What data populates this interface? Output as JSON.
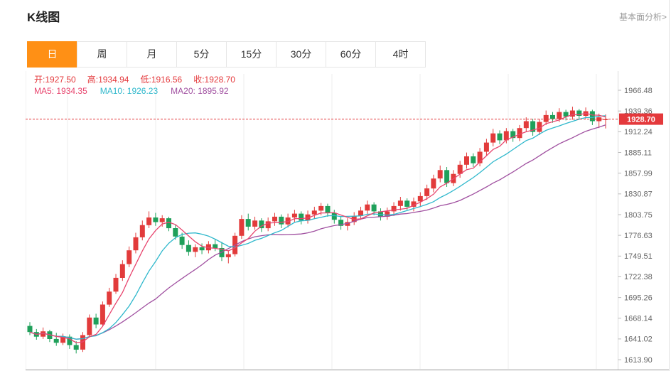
{
  "header": {
    "title": "K线图",
    "link": "基本面分析>"
  },
  "tabs": [
    {
      "label": "日",
      "active": true
    },
    {
      "label": "周",
      "active": false
    },
    {
      "label": "月",
      "active": false
    },
    {
      "label": "5分",
      "active": false
    },
    {
      "label": "15分",
      "active": false
    },
    {
      "label": "30分",
      "active": false
    },
    {
      "label": "60分",
      "active": false
    },
    {
      "label": "4时",
      "active": false
    }
  ],
  "quote": {
    "open_label": "开:",
    "open": "1927.50",
    "high_label": "高:",
    "high": "1934.94",
    "low_label": "低:",
    "low": "1916.56",
    "close_label": "收:",
    "close": "1928.70"
  },
  "ma": {
    "ma5_label": "MA5:",
    "ma5": "1934.35",
    "ma10_label": "MA10:",
    "ma10": "1926.23",
    "ma20_label": "MA20:",
    "ma20": "1895.92"
  },
  "colors": {
    "accent_orange": "#ff9015",
    "up_red": "#e23b3b",
    "down_green": "#1fa05a",
    "ma5": "#e8456e",
    "ma10": "#2fb8cc",
    "ma20": "#a050a0",
    "price_marker": "#e4393c"
  },
  "chart_data": {
    "type": "candlestick",
    "title": "K线图 (日)",
    "current_price": 1928.7,
    "current_price_label": "1928.70",
    "value_top": 1991.6,
    "value_bottom": 1600.0,
    "y_ticks": [
      "1966.48",
      "1939.36",
      "1912.24",
      "1885.11",
      "1857.99",
      "1830.87",
      "1803.75",
      "1776.63",
      "1749.51",
      "1722.38",
      "1695.26",
      "1668.14",
      "1641.02",
      "1613.90"
    ],
    "legend": [
      {
        "name": "MA5",
        "value": 1934.35
      },
      {
        "name": "MA10",
        "value": 1926.23
      },
      {
        "name": "MA20",
        "value": 1895.92
      }
    ],
    "candles": [
      [
        1658,
        1663,
        1646,
        1650
      ],
      [
        1650,
        1654,
        1640,
        1644
      ],
      [
        1644,
        1656,
        1641,
        1651
      ],
      [
        1651,
        1653,
        1637,
        1641
      ],
      [
        1641,
        1649,
        1632,
        1636
      ],
      [
        1636,
        1648,
        1633,
        1644
      ],
      [
        1644,
        1647,
        1628,
        1633
      ],
      [
        1633,
        1638,
        1622,
        1627
      ],
      [
        1627,
        1650,
        1624,
        1646
      ],
      [
        1646,
        1673,
        1643,
        1669
      ],
      [
        1669,
        1674,
        1655,
        1660
      ],
      [
        1660,
        1690,
        1658,
        1686
      ],
      [
        1686,
        1708,
        1683,
        1703
      ],
      [
        1703,
        1726,
        1700,
        1721
      ],
      [
        1721,
        1744,
        1717,
        1739
      ],
      [
        1739,
        1762,
        1735,
        1757
      ],
      [
        1757,
        1780,
        1753,
        1774
      ],
      [
        1774,
        1796,
        1770,
        1790
      ],
      [
        1790,
        1808,
        1786,
        1800
      ],
      [
        1800,
        1806,
        1789,
        1794
      ],
      [
        1794,
        1803,
        1788,
        1799
      ],
      [
        1799,
        1801,
        1782,
        1786
      ],
      [
        1786,
        1790,
        1771,
        1775
      ],
      [
        1775,
        1780,
        1759,
        1764
      ],
      [
        1764,
        1770,
        1750,
        1755
      ],
      [
        1755,
        1765,
        1748,
        1761
      ],
      [
        1761,
        1766,
        1752,
        1757
      ],
      [
        1757,
        1769,
        1753,
        1765
      ],
      [
        1765,
        1771,
        1756,
        1760
      ],
      [
        1760,
        1768,
        1743,
        1748
      ],
      [
        1748,
        1756,
        1740,
        1752
      ],
      [
        1752,
        1780,
        1749,
        1776
      ],
      [
        1776,
        1803,
        1772,
        1798
      ],
      [
        1798,
        1805,
        1783,
        1788
      ],
      [
        1788,
        1801,
        1784,
        1796
      ],
      [
        1796,
        1799,
        1781,
        1786
      ],
      [
        1786,
        1800,
        1782,
        1795
      ],
      [
        1795,
        1806,
        1789,
        1801
      ],
      [
        1801,
        1804,
        1786,
        1791
      ],
      [
        1791,
        1805,
        1787,
        1800
      ],
      [
        1800,
        1810,
        1794,
        1805
      ],
      [
        1805,
        1808,
        1791,
        1796
      ],
      [
        1796,
        1809,
        1792,
        1804
      ],
      [
        1804,
        1814,
        1798,
        1809
      ],
      [
        1809,
        1819,
        1803,
        1815
      ],
      [
        1815,
        1818,
        1801,
        1806
      ],
      [
        1806,
        1810,
        1792,
        1797
      ],
      [
        1797,
        1801,
        1784,
        1789
      ],
      [
        1789,
        1799,
        1783,
        1794
      ],
      [
        1794,
        1807,
        1790,
        1802
      ],
      [
        1802,
        1814,
        1797,
        1809
      ],
      [
        1809,
        1822,
        1804,
        1817
      ],
      [
        1817,
        1820,
        1803,
        1808
      ],
      [
        1808,
        1812,
        1796,
        1801
      ],
      [
        1801,
        1813,
        1797,
        1808
      ],
      [
        1808,
        1820,
        1802,
        1815
      ],
      [
        1815,
        1827,
        1809,
        1822
      ],
      [
        1822,
        1825,
        1810,
        1814
      ],
      [
        1814,
        1826,
        1808,
        1821
      ],
      [
        1821,
        1833,
        1815,
        1828
      ],
      [
        1828,
        1843,
        1823,
        1838
      ],
      [
        1838,
        1856,
        1833,
        1851
      ],
      [
        1851,
        1868,
        1846,
        1862
      ],
      [
        1862,
        1866,
        1840,
        1845
      ],
      [
        1845,
        1862,
        1841,
        1857
      ],
      [
        1857,
        1874,
        1852,
        1869
      ],
      [
        1869,
        1885,
        1864,
        1880
      ],
      [
        1880,
        1884,
        1866,
        1871
      ],
      [
        1871,
        1891,
        1867,
        1886
      ],
      [
        1886,
        1903,
        1881,
        1898
      ],
      [
        1898,
        1916,
        1893,
        1910
      ],
      [
        1910,
        1914,
        1896,
        1901
      ],
      [
        1901,
        1917,
        1897,
        1913
      ],
      [
        1913,
        1916,
        1899,
        1904
      ],
      [
        1904,
        1921,
        1900,
        1917
      ],
      [
        1917,
        1931,
        1912,
        1926
      ],
      [
        1926,
        1929,
        1907,
        1912
      ],
      [
        1912,
        1929,
        1908,
        1925
      ],
      [
        1925,
        1940,
        1921,
        1934
      ],
      [
        1934,
        1938,
        1924,
        1929
      ],
      [
        1929,
        1943,
        1925,
        1938
      ],
      [
        1938,
        1941,
        1927,
        1932
      ],
      [
        1932,
        1945,
        1928,
        1940
      ],
      [
        1940,
        1942,
        1928,
        1933
      ],
      [
        1933,
        1944,
        1929,
        1939
      ],
      [
        1939,
        1941,
        1921,
        1926
      ],
      [
        1926,
        1936,
        1917,
        1931
      ],
      [
        1927.5,
        1934.94,
        1916.56,
        1928.7
      ]
    ]
  }
}
